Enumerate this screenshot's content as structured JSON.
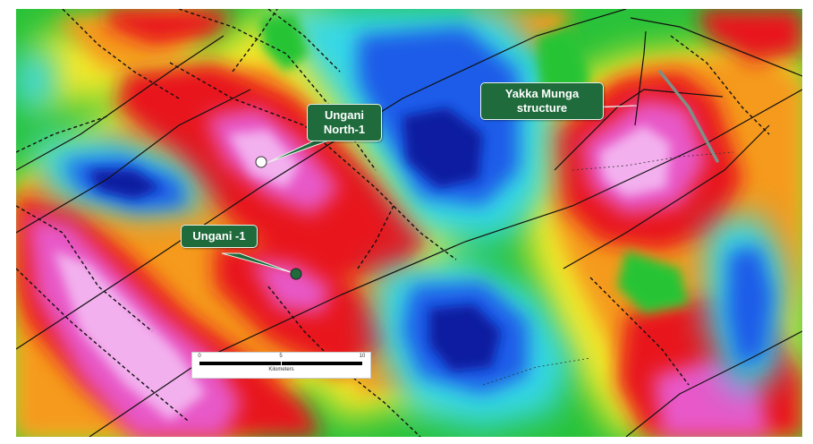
{
  "map": {
    "palette": {
      "magenta_high": "#f0a0f0",
      "red": "#e8141c",
      "orange": "#f59a1e",
      "yellow": "#f2ec2a",
      "green": "#27c436",
      "cyan": "#35d8e8",
      "blue": "#1036d8",
      "deep_blue": "#0a1aa0"
    },
    "callout_color": "#1f6b3c"
  },
  "wells": {
    "ungani_north": {
      "label_line1": "Ungani",
      "label_line2": "North-1",
      "marker": "white-circle"
    },
    "ungani_1": {
      "label": "Ungani -1",
      "marker": "dark-green-circle"
    }
  },
  "structures": {
    "yakka_munga": {
      "label_line1": "Yakka Munga",
      "label_line2": "structure"
    }
  },
  "scale_bar": {
    "ticks": [
      "0",
      "5",
      "10"
    ],
    "unit": "Kilometers"
  }
}
